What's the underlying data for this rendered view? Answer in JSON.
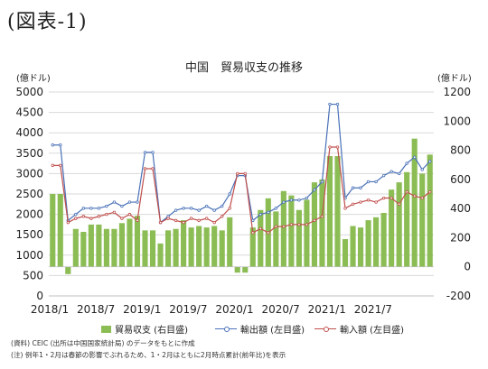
{
  "figure_label": "(図表-1)",
  "notes": {
    "source": "(資料) CEIC (出所は中国国家統計局) のデータをもとに作成",
    "note": "(注) 例年1・2月は春節の影響でぶれるため、1・2月はともに2月時点累計(前年比)を表示"
  },
  "chart_data": {
    "type": "bar",
    "title": "中国　貿易収支の推移",
    "left_axis": {
      "label": "(億ドル)",
      "ylim": [
        0,
        5000
      ],
      "ticks": [
        0,
        500,
        1000,
        1500,
        2000,
        2500,
        3000,
        3500,
        4000,
        4500,
        5000
      ]
    },
    "right_axis": {
      "label": "(億ドル)",
      "ylim": [
        -200,
        1200
      ],
      "ticks": [
        -200,
        0,
        200,
        400,
        600,
        800,
        1000,
        1200
      ]
    },
    "x_tick_labels": [
      "2018/1",
      "2018/7",
      "2019/1",
      "2019/7",
      "2020/1",
      "2020/7",
      "2021/1",
      "2021/7"
    ],
    "x_tick_indices": [
      0,
      6,
      12,
      18,
      24,
      30,
      36,
      42
    ],
    "colors": {
      "bars": "#8cbd55",
      "exports": "#4a72b8",
      "imports": "#c0504d"
    },
    "legend_position": "bottom",
    "series": [
      {
        "name": "貿易収支 (右目盛)",
        "kind": "bar",
        "axis": "right",
        "values": [
          500,
          500,
          -50,
          260,
          240,
          290,
          290,
          260,
          260,
          300,
          330,
          350,
          250,
          250,
          160,
          250,
          260,
          320,
          270,
          280,
          270,
          280,
          250,
          340,
          -40,
          -40,
          270,
          390,
          470,
          380,
          520,
          490,
          390,
          460,
          580,
          600,
          760,
          760,
          190,
          280,
          270,
          320,
          340,
          370,
          530,
          580,
          650,
          880,
          640,
          770
        ]
      },
      {
        "name": "輸出額 (左目盛)",
        "kind": "line",
        "axis": "left",
        "values": [
          3700,
          3700,
          1850,
          2000,
          2150,
          2150,
          2150,
          2200,
          2300,
          2200,
          2300,
          2300,
          3520,
          3520,
          1800,
          1950,
          2100,
          2150,
          2150,
          2100,
          2200,
          2100,
          2200,
          2500,
          2950,
          2950,
          1850,
          2000,
          2050,
          2150,
          2300,
          2350,
          2350,
          2400,
          2600,
          2800,
          4700,
          4700,
          2400,
          2650,
          2650,
          2800,
          2800,
          2950,
          3050,
          3000,
          3250,
          3400,
          3100,
          3300
        ]
      },
      {
        "name": "輸入額 (左目盛)",
        "kind": "line",
        "axis": "left",
        "values": [
          3200,
          3200,
          1800,
          1900,
          1950,
          1900,
          1950,
          2000,
          2050,
          1900,
          2000,
          1850,
          3120,
          3120,
          1800,
          1900,
          1850,
          1800,
          1900,
          1850,
          1900,
          1800,
          1950,
          2150,
          3000,
          3000,
          1550,
          1650,
          1550,
          1700,
          1700,
          1750,
          1750,
          1750,
          1850,
          1950,
          3650,
          3650,
          2150,
          2250,
          2300,
          2350,
          2300,
          2400,
          2400,
          2250,
          2550,
          2450,
          2400,
          2550
        ]
      }
    ]
  }
}
